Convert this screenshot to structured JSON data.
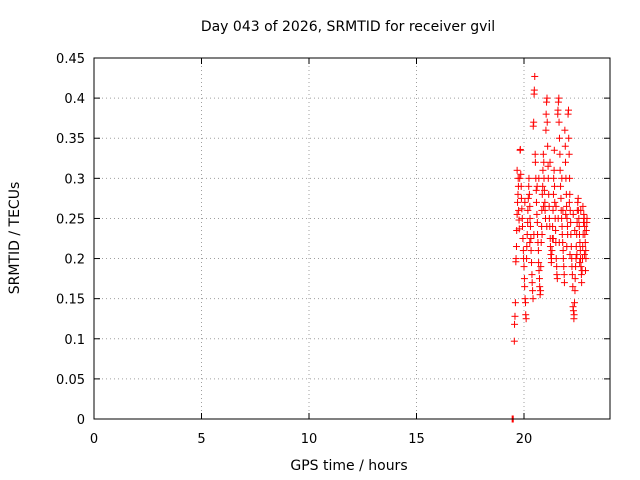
{
  "chart_data": {
    "type": "scatter",
    "title": "Day 043 of 2026, SRMTID for receiver gvil",
    "xlabel": "GPS time / hours",
    "ylabel": "SRMTID / TECUs",
    "xlim": [
      0,
      24
    ],
    "ylim": [
      0,
      0.45
    ],
    "xticks": [
      0,
      5,
      10,
      15,
      20
    ],
    "yticks": [
      0,
      0.05,
      0.1,
      0.15,
      0.2,
      0.25,
      0.3,
      0.35,
      0.4,
      0.45
    ],
    "ytick_labels": [
      "0",
      "0.05",
      "0.1",
      "0.15",
      "0.2",
      "0.25",
      "0.3",
      "0.35",
      "0.4",
      "0.45"
    ],
    "grid": true,
    "marker": "+",
    "color": "#ff0000",
    "points": [
      [
        19.45,
        0.0
      ],
      [
        19.47,
        0.0
      ],
      [
        19.5,
        0.0
      ],
      [
        19.55,
        0.097
      ],
      [
        19.56,
        0.118
      ],
      [
        19.58,
        0.128
      ],
      [
        19.6,
        0.145
      ],
      [
        19.62,
        0.196
      ],
      [
        19.63,
        0.2
      ],
      [
        19.65,
        0.215
      ],
      [
        19.66,
        0.235
      ],
      [
        19.68,
        0.255
      ],
      [
        19.7,
        0.27
      ],
      [
        19.72,
        0.28
      ],
      [
        19.74,
        0.29
      ],
      [
        19.75,
        0.26
      ],
      [
        19.77,
        0.248
      ],
      [
        19.78,
        0.237
      ],
      [
        19.8,
        0.3
      ],
      [
        19.82,
        0.335
      ],
      [
        19.83,
        0.336
      ],
      [
        19.85,
        0.305
      ],
      [
        19.87,
        0.29
      ],
      [
        19.88,
        0.275
      ],
      [
        19.9,
        0.262
      ],
      [
        19.92,
        0.25
      ],
      [
        19.93,
        0.24
      ],
      [
        19.95,
        0.225
      ],
      [
        19.97,
        0.21
      ],
      [
        19.98,
        0.2
      ],
      [
        20.0,
        0.19
      ],
      [
        20.02,
        0.175
      ],
      [
        20.03,
        0.165
      ],
      [
        20.05,
        0.15
      ],
      [
        20.07,
        0.145
      ],
      [
        20.08,
        0.13
      ],
      [
        20.1,
        0.125
      ],
      [
        20.12,
        0.2
      ],
      [
        20.13,
        0.215
      ],
      [
        20.15,
        0.23
      ],
      [
        20.17,
        0.245
      ],
      [
        20.18,
        0.26
      ],
      [
        20.2,
        0.275
      ],
      [
        20.22,
        0.29
      ],
      [
        20.23,
        0.3
      ],
      [
        20.25,
        0.28
      ],
      [
        20.27,
        0.265
      ],
      [
        20.28,
        0.25
      ],
      [
        20.3,
        0.24
      ],
      [
        20.32,
        0.225
      ],
      [
        20.33,
        0.21
      ],
      [
        20.35,
        0.195
      ],
      [
        20.37,
        0.18
      ],
      [
        20.38,
        0.17
      ],
      [
        20.4,
        0.16
      ],
      [
        20.42,
        0.15
      ],
      [
        20.43,
        0.365
      ],
      [
        20.45,
        0.37
      ],
      [
        20.47,
        0.405
      ],
      [
        20.48,
        0.41
      ],
      [
        20.5,
        0.427
      ],
      [
        20.52,
        0.33
      ],
      [
        20.53,
        0.32
      ],
      [
        20.55,
        0.3
      ],
      [
        20.57,
        0.285
      ],
      [
        20.58,
        0.27
      ],
      [
        20.6,
        0.255
      ],
      [
        20.62,
        0.245
      ],
      [
        20.63,
        0.23
      ],
      [
        20.65,
        0.22
      ],
      [
        20.67,
        0.21
      ],
      [
        20.68,
        0.195
      ],
      [
        20.7,
        0.185
      ],
      [
        20.72,
        0.175
      ],
      [
        20.73,
        0.165
      ],
      [
        20.75,
        0.155
      ],
      [
        20.77,
        0.16
      ],
      [
        20.78,
        0.19
      ],
      [
        20.8,
        0.22
      ],
      [
        20.82,
        0.24
      ],
      [
        20.83,
        0.26
      ],
      [
        20.85,
        0.28
      ],
      [
        20.87,
        0.29
      ],
      [
        20.88,
        0.31
      ],
      [
        20.9,
        0.33
      ],
      [
        20.92,
        0.32
      ],
      [
        20.93,
        0.3
      ],
      [
        20.95,
        0.285
      ],
      [
        20.97,
        0.27
      ],
      [
        20.98,
        0.26
      ],
      [
        21.0,
        0.25
      ],
      [
        21.02,
        0.36
      ],
      [
        21.03,
        0.38
      ],
      [
        21.05,
        0.395
      ],
      [
        21.07,
        0.4
      ],
      [
        21.08,
        0.37
      ],
      [
        21.1,
        0.34
      ],
      [
        21.12,
        0.315
      ],
      [
        21.13,
        0.3
      ],
      [
        21.15,
        0.28
      ],
      [
        21.17,
        0.265
      ],
      [
        21.18,
        0.25
      ],
      [
        21.2,
        0.24
      ],
      [
        21.22,
        0.225
      ],
      [
        21.23,
        0.215
      ],
      [
        21.25,
        0.205
      ],
      [
        21.27,
        0.195
      ],
      [
        21.28,
        0.2
      ],
      [
        21.3,
        0.21
      ],
      [
        21.32,
        0.225
      ],
      [
        21.33,
        0.24
      ],
      [
        21.35,
        0.26
      ],
      [
        21.37,
        0.28
      ],
      [
        21.38,
        0.3
      ],
      [
        21.4,
        0.31
      ],
      [
        21.42,
        0.29
      ],
      [
        21.43,
        0.27
      ],
      [
        21.45,
        0.25
      ],
      [
        21.47,
        0.235
      ],
      [
        21.48,
        0.22
      ],
      [
        21.5,
        0.2
      ],
      [
        21.52,
        0.19
      ],
      [
        21.53,
        0.18
      ],
      [
        21.55,
        0.175
      ],
      [
        21.57,
        0.38
      ],
      [
        21.58,
        0.385
      ],
      [
        21.6,
        0.395
      ],
      [
        21.62,
        0.4
      ],
      [
        21.63,
        0.37
      ],
      [
        21.65,
        0.35
      ],
      [
        21.67,
        0.33
      ],
      [
        21.68,
        0.31
      ],
      [
        21.7,
        0.29
      ],
      [
        21.72,
        0.275
      ],
      [
        21.73,
        0.26
      ],
      [
        21.75,
        0.25
      ],
      [
        21.77,
        0.24
      ],
      [
        21.78,
        0.23
      ],
      [
        21.8,
        0.22
      ],
      [
        21.82,
        0.21
      ],
      [
        21.83,
        0.2
      ],
      [
        21.85,
        0.19
      ],
      [
        21.87,
        0.18
      ],
      [
        21.88,
        0.17
      ],
      [
        21.9,
        0.36
      ],
      [
        21.92,
        0.34
      ],
      [
        21.93,
        0.32
      ],
      [
        21.95,
        0.3
      ],
      [
        21.97,
        0.28
      ],
      [
        21.98,
        0.265
      ],
      [
        22.0,
        0.25
      ],
      [
        22.02,
        0.24
      ],
      [
        22.03,
        0.23
      ],
      [
        22.05,
        0.38
      ],
      [
        22.07,
        0.385
      ],
      [
        22.08,
        0.35
      ],
      [
        22.1,
        0.33
      ],
      [
        22.12,
        0.3
      ],
      [
        22.13,
        0.28
      ],
      [
        22.15,
        0.26
      ],
      [
        22.17,
        0.245
      ],
      [
        22.18,
        0.23
      ],
      [
        22.2,
        0.215
      ],
      [
        22.22,
        0.2
      ],
      [
        22.23,
        0.19
      ],
      [
        22.25,
        0.18
      ],
      [
        22.27,
        0.165
      ],
      [
        22.28,
        0.14
      ],
      [
        22.3,
        0.135
      ],
      [
        22.32,
        0.125
      ],
      [
        22.33,
        0.13
      ],
      [
        22.35,
        0.145
      ],
      [
        22.37,
        0.16
      ],
      [
        22.38,
        0.175
      ],
      [
        22.4,
        0.19
      ],
      [
        22.42,
        0.2
      ],
      [
        22.43,
        0.215
      ],
      [
        22.45,
        0.23
      ],
      [
        22.47,
        0.245
      ],
      [
        22.48,
        0.26
      ],
      [
        22.5,
        0.27
      ],
      [
        22.52,
        0.275
      ],
      [
        22.53,
        0.26
      ],
      [
        22.55,
        0.25
      ],
      [
        22.57,
        0.24
      ],
      [
        22.58,
        0.23
      ],
      [
        22.6,
        0.22
      ],
      [
        22.62,
        0.21
      ],
      [
        22.63,
        0.2
      ],
      [
        22.65,
        0.19
      ],
      [
        22.67,
        0.18
      ],
      [
        22.68,
        0.17
      ],
      [
        22.7,
        0.185
      ],
      [
        22.72,
        0.2
      ],
      [
        22.73,
        0.215
      ],
      [
        22.75,
        0.23
      ],
      [
        22.77,
        0.245
      ],
      [
        22.78,
        0.255
      ],
      [
        22.8,
        0.25
      ],
      [
        22.82,
        0.24
      ],
      [
        22.83,
        0.23
      ],
      [
        22.85,
        0.22
      ],
      [
        22.87,
        0.21
      ],
      [
        22.88,
        0.2
      ],
      [
        22.9,
        0.235
      ],
      [
        22.92,
        0.245
      ],
      [
        22.93,
        0.25
      ],
      [
        19.68,
        0.31
      ],
      [
        19.73,
        0.3
      ],
      [
        20.04,
        0.27
      ],
      [
        20.27,
        0.22
      ],
      [
        20.61,
        0.29
      ],
      [
        20.84,
        0.23
      ],
      [
        21.06,
        0.24
      ],
      [
        21.36,
        0.225
      ],
      [
        21.49,
        0.265
      ],
      [
        21.64,
        0.22
      ],
      [
        21.81,
        0.26
      ],
      [
        21.99,
        0.215
      ],
      [
        22.14,
        0.205
      ],
      [
        22.36,
        0.235
      ],
      [
        22.59,
        0.195
      ],
      [
        22.74,
        0.265
      ],
      [
        22.86,
        0.185
      ],
      [
        20.46,
        0.23
      ],
      [
        20.69,
        0.3
      ],
      [
        20.91,
        0.265
      ],
      [
        21.21,
        0.32
      ],
      [
        21.41,
        0.335
      ],
      [
        21.59,
        0.25
      ],
      [
        21.76,
        0.3
      ],
      [
        21.94,
        0.255
      ],
      [
        22.11,
        0.27
      ],
      [
        22.29,
        0.255
      ],
      [
        22.46,
        0.205
      ],
      [
        22.64,
        0.26
      ],
      [
        22.81,
        0.205
      ]
    ]
  }
}
